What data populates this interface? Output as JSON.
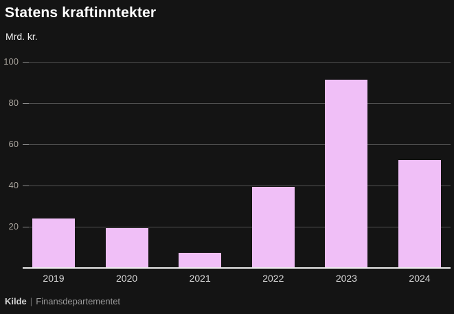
{
  "header": {
    "title": "Statens kraftinntekter",
    "subtitle": "Mrd. kr."
  },
  "chart_data": {
    "type": "bar",
    "title": "Statens kraftinntekter",
    "ylabel_unit": "Mrd. kr.",
    "categories": [
      "2019",
      "2020",
      "2021",
      "2022",
      "2023",
      "2024"
    ],
    "values": [
      24,
      19.5,
      7.5,
      39.5,
      91.5,
      52.5
    ],
    "ylim": [
      0,
      100
    ],
    "yticks": [
      20,
      40,
      60,
      80,
      100
    ],
    "grid": "horizontal",
    "legend": "none",
    "bar_color": "#f0bff7",
    "background_color": "#141414",
    "baseline_color": "#ededed",
    "gridline_color": "#525252"
  },
  "footer": {
    "source_label": "Kilde",
    "separator": "|",
    "source_name": "Finansdepartementet"
  }
}
